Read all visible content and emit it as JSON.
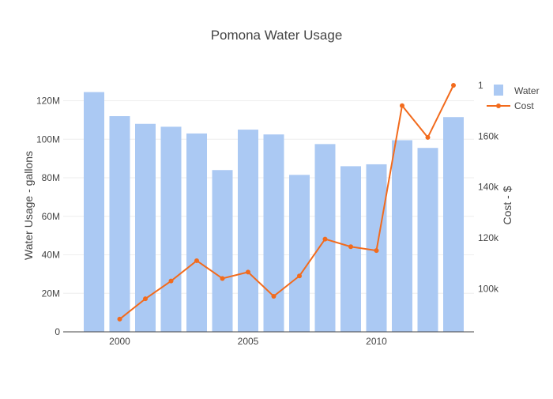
{
  "chart_data": {
    "type": "bar",
    "title": "Pomona Water Usage",
    "xlabel": "",
    "ylabel": "Water Usage - gallons",
    "y2label": "Cost - $",
    "x": [
      1999,
      2000,
      2001,
      2002,
      2003,
      2004,
      2005,
      2006,
      2007,
      2008,
      2009,
      2010,
      2011,
      2012,
      2013
    ],
    "x_ticks": [
      2000,
      2005,
      2010
    ],
    "x_tick_labels": [
      "2000",
      "2005",
      "2010"
    ],
    "xlim": [
      1997.8,
      2013.8
    ],
    "ylim": [
      0,
      128000000
    ],
    "y_ticks": [
      0,
      20000000,
      40000000,
      60000000,
      80000000,
      100000000,
      120000000
    ],
    "y_tick_labels": [
      "0",
      "20M",
      "40M",
      "60M",
      "80M",
      "100M",
      "120M"
    ],
    "y2lim": [
      83000000,
      1800000000
    ],
    "y2_ticks": [
      100000,
      120000,
      140000,
      160000
    ],
    "y2_tick_labels": [
      "100k",
      "120k",
      "140k",
      "160k"
    ],
    "y2_top_label": "1",
    "y2_display_range": [
      83000,
      180000
    ],
    "series": [
      {
        "name": "Water",
        "kind": "bar",
        "axis": "y",
        "color": "#abc9f3",
        "values": [
          124500000,
          112000000,
          108000000,
          106500000,
          103000000,
          84000000,
          105000000,
          102500000,
          81500000,
          97500000,
          86000000,
          87000000,
          99500000,
          95500000,
          111500000
        ]
      },
      {
        "name": "Cost",
        "kind": "line",
        "axis": "y2",
        "color": "#f26b1d",
        "x": [
          2000,
          2001,
          2002,
          2003,
          2004,
          2005,
          2006,
          2007,
          2008,
          2009,
          2010,
          2011,
          2012,
          2013
        ],
        "values": [
          88000,
          96000,
          103000,
          111000,
          104000,
          106500,
          97000,
          105000,
          119500,
          116500,
          115000,
          172000,
          159500,
          180000
        ]
      }
    ],
    "legend_position": "top-right",
    "grid": true
  }
}
